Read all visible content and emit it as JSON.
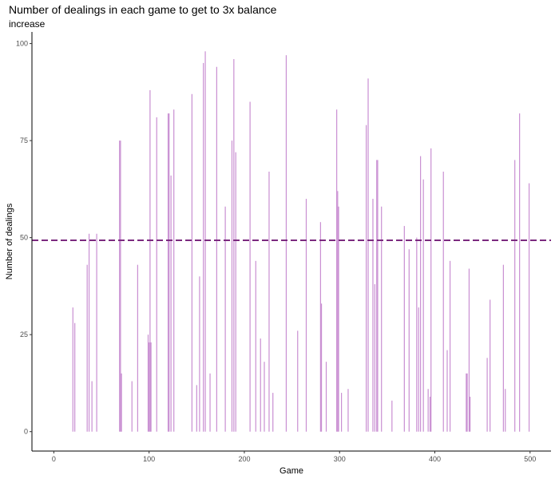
{
  "chart_data": {
    "type": "bar",
    "title": "Number of dealings in each game to get to 3x balance",
    "subtitle": "increase",
    "xlabel": "Game",
    "ylabel": "Number of dealings",
    "xlim": [
      -23,
      522
    ],
    "ylim": [
      -5,
      103
    ],
    "x_ticks": [
      0,
      100,
      200,
      300,
      400,
      500
    ],
    "y_ticks": [
      0,
      25,
      50,
      75,
      100
    ],
    "grid": false,
    "legend": "none",
    "bar_color": "#c98fd2",
    "mean_line": {
      "value": 49.3,
      "color": "#7b2a7f",
      "style": "dashed"
    },
    "points": [
      [
        20,
        32
      ],
      [
        22,
        28
      ],
      [
        35,
        43
      ],
      [
        37,
        51
      ],
      [
        40,
        13
      ],
      [
        45,
        51
      ],
      [
        69,
        75
      ],
      [
        70,
        75
      ],
      [
        71,
        15
      ],
      [
        82,
        13
      ],
      [
        88,
        43
      ],
      [
        99,
        25
      ],
      [
        100,
        23
      ],
      [
        101,
        88
      ],
      [
        102,
        23
      ],
      [
        108,
        81
      ],
      [
        120,
        82
      ],
      [
        121,
        82
      ],
      [
        123,
        66
      ],
      [
        126,
        83
      ],
      [
        145,
        87
      ],
      [
        150,
        12
      ],
      [
        153,
        40
      ],
      [
        157,
        95
      ],
      [
        159,
        98
      ],
      [
        164,
        15
      ],
      [
        171,
        94
      ],
      [
        180,
        58
      ],
      [
        187,
        75
      ],
      [
        189,
        96
      ],
      [
        191,
        72
      ],
      [
        206,
        85
      ],
      [
        212,
        44
      ],
      [
        217,
        24
      ],
      [
        221,
        18
      ],
      [
        226,
        67
      ],
      [
        230,
        10
      ],
      [
        244,
        97
      ],
      [
        256,
        26
      ],
      [
        265,
        60
      ],
      [
        280,
        54
      ],
      [
        281,
        33
      ],
      [
        286,
        18
      ],
      [
        297,
        83
      ],
      [
        298,
        62
      ],
      [
        299,
        58
      ],
      [
        302,
        10
      ],
      [
        309,
        11
      ],
      [
        328,
        79
      ],
      [
        330,
        91
      ],
      [
        335,
        60
      ],
      [
        337,
        38
      ],
      [
        339,
        70
      ],
      [
        340,
        70
      ],
      [
        344,
        58
      ],
      [
        355,
        8
      ],
      [
        368,
        53
      ],
      [
        373,
        47
      ],
      [
        381,
        50
      ],
      [
        383,
        32
      ],
      [
        385,
        71
      ],
      [
        388,
        65
      ],
      [
        393,
        11
      ],
      [
        395,
        9
      ],
      [
        396,
        73
      ],
      [
        409,
        67
      ],
      [
        413,
        21
      ],
      [
        416,
        44
      ],
      [
        433,
        15
      ],
      [
        434,
        15
      ],
      [
        436,
        42
      ],
      [
        437,
        9
      ],
      [
        455,
        19
      ],
      [
        458,
        34
      ],
      [
        472,
        43
      ],
      [
        474,
        11
      ],
      [
        484,
        70
      ],
      [
        489,
        82
      ],
      [
        499,
        64
      ]
    ]
  }
}
